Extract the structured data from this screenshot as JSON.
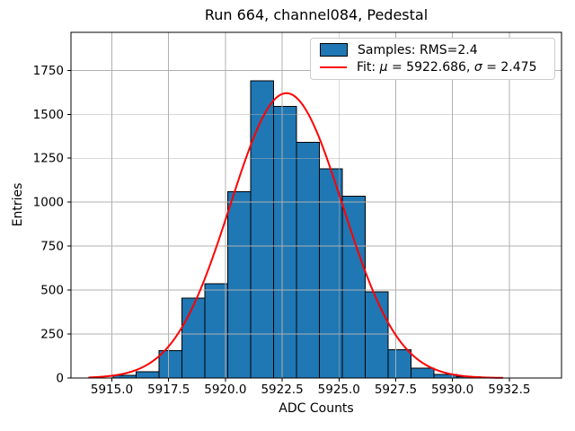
{
  "figure": {
    "title": "Run 664, channel084, Pedestal",
    "xlabel": "ADC Counts",
    "ylabel": "Entries"
  },
  "legend": {
    "samples_label": "Samples: RMS=2.4",
    "fit_prefix": "Fit: ",
    "mu_symbol": "μ",
    "eq": " = ",
    "mu_value": "5922.686",
    "sep": ", ",
    "sigma_symbol": "σ",
    "sigma_value": "2.475"
  },
  "chart_data": {
    "type": "bar",
    "subtype": "histogram",
    "title": "Run 664, channel084, Pedestal",
    "xlabel": "ADC Counts",
    "ylabel": "Entries",
    "bin_edges": [
      5915.05,
      5916.06,
      5917.07,
      5918.08,
      5919.09,
      5920.1,
      5921.11,
      5922.12,
      5923.13,
      5924.14,
      5925.15,
      5926.16,
      5927.17,
      5928.18,
      5929.19,
      5930.2,
      5931.21
    ],
    "counts": [
      15,
      35,
      155,
      455,
      535,
      1060,
      1690,
      1545,
      1340,
      1190,
      1035,
      490,
      160,
      55,
      20,
      8
    ],
    "bar_color": "#1f77b4",
    "bar_edge_color": "#000000",
    "fit": {
      "type": "gaussian",
      "mu": 5922.686,
      "sigma": 2.475,
      "amplitude": 1620,
      "color": "#ff0000",
      "x_range": [
        5914.0,
        5932.2
      ]
    },
    "xticks": [
      5915.0,
      5917.5,
      5920.0,
      5922.5,
      5925.0,
      5927.5,
      5930.0,
      5932.5
    ],
    "xtick_labels": [
      "5915.0",
      "5917.5",
      "5920.0",
      "5922.5",
      "5925.0",
      "5927.5",
      "5930.0",
      "5932.5"
    ],
    "yticks": [
      0,
      250,
      500,
      750,
      1000,
      1250,
      1500,
      1750
    ],
    "ytick_labels": [
      "0",
      "250",
      "500",
      "750",
      "1000",
      "1250",
      "1500",
      "1750"
    ],
    "xlim": [
      5913.2,
      5934.8
    ],
    "ylim": [
      0,
      1966
    ],
    "grid": true,
    "grid_color": "#b0b0b0",
    "legend_position": "upper right",
    "legend_entries": [
      "Samples: RMS=2.4",
      "Fit: μ = 5922.686, σ = 2.475"
    ]
  }
}
